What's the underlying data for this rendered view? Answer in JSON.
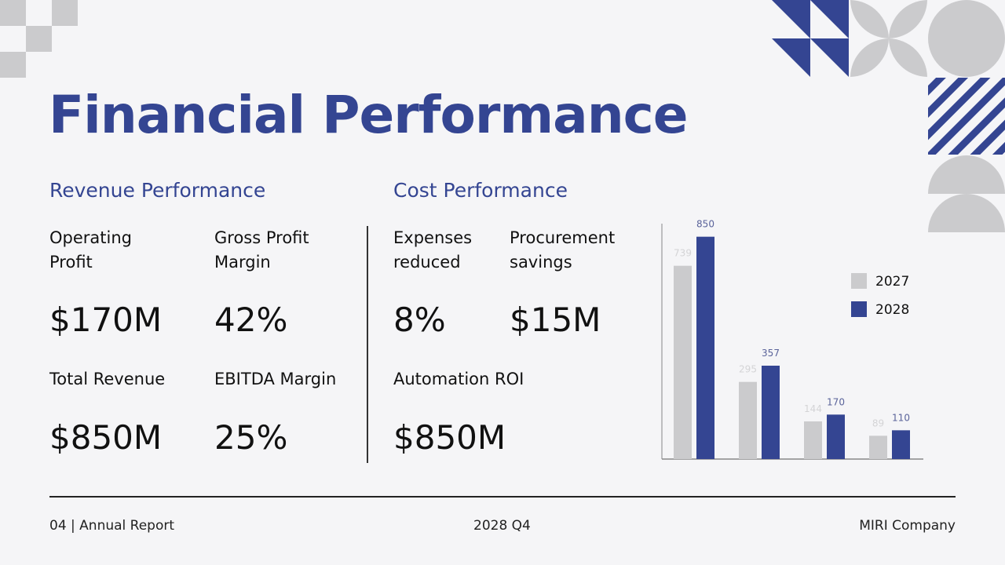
{
  "title": "Financial Performance",
  "revenue": {
    "heading": "Revenue Performance",
    "metrics": [
      {
        "label": "Operating Profit",
        "value": "$170M"
      },
      {
        "label": "Gross Profit Margin",
        "value": "42%"
      },
      {
        "label": "Total Revenue",
        "value": "$850M"
      },
      {
        "label": "EBITDA Margin",
        "value": "25%"
      }
    ]
  },
  "cost": {
    "heading": "Cost Performance",
    "metrics": [
      {
        "label": "Expenses reduced",
        "value": "8%"
      },
      {
        "label": "Procurement savings",
        "value": "$15M"
      },
      {
        "label": "Automation ROI",
        "value": "$850M"
      }
    ]
  },
  "footer": {
    "left": "04 | Annual Report",
    "center": "2028 Q4",
    "right": "MIRI Company"
  },
  "colors": {
    "accent": "#344592",
    "gray": "#cbcbcd"
  },
  "chart_data": {
    "type": "bar",
    "categories": [
      "",
      "",
      "",
      ""
    ],
    "series": [
      {
        "name": "2027",
        "values": [
          739,
          295,
          144,
          89
        ],
        "color": "#cbcbcd"
      },
      {
        "name": "2028",
        "values": [
          850,
          357,
          170,
          110
        ],
        "color": "#344592"
      }
    ],
    "ylim": [
      0,
      900
    ],
    "grid": false,
    "legend": "right"
  }
}
